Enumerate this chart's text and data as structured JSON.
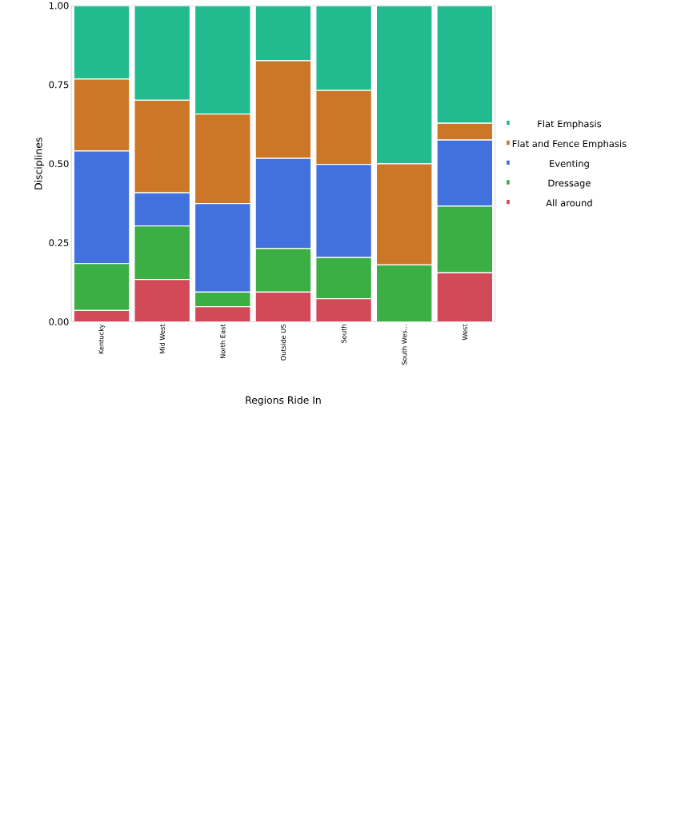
{
  "chart_data": {
    "type": "bar",
    "stacked": true,
    "xlabel": "Regions Ride In",
    "ylabel": "Disciplines",
    "categories": [
      "Kentucky",
      "Mid West",
      "North East",
      "Outside US",
      "South",
      "South Wes...",
      "West"
    ],
    "series": [
      {
        "name": "All around",
        "color": "#d24a58",
        "values": [
          0.036,
          0.134,
          0.048,
          0.094,
          0.073,
          0,
          0.155
        ]
      },
      {
        "name": "Dressage",
        "color": "#3bae44",
        "values": [
          0.148,
          0.169,
          0.046,
          0.138,
          0.13,
          0.18,
          0.211
        ]
      },
      {
        "name": "Eventing",
        "color": "#4071dd",
        "values": [
          0.356,
          0.105,
          0.28,
          0.285,
          0.295,
          0,
          0.209
        ]
      },
      {
        "name": "Flat and Fence Emphasis",
        "color": "#cc7727",
        "values": [
          0.228,
          0.293,
          0.283,
          0.309,
          0.234,
          0.32,
          0.053
        ]
      },
      {
        "name": "Flat Emphasis",
        "color": "#22bb90",
        "values": [
          0.232,
          0.299,
          0.343,
          0.174,
          0.268,
          0.5,
          0.372
        ]
      }
    ],
    "ylim": [
      0,
      1
    ],
    "yticks": [
      {
        "value": 0,
        "label": "0.00"
      },
      {
        "value": 0.25,
        "label": "0.25"
      },
      {
        "value": 0.5,
        "label": "0.50"
      },
      {
        "value": 0.75,
        "label": "0.75"
      },
      {
        "value": 1,
        "label": "1.00"
      }
    ],
    "legend": "right",
    "grid": false
  }
}
